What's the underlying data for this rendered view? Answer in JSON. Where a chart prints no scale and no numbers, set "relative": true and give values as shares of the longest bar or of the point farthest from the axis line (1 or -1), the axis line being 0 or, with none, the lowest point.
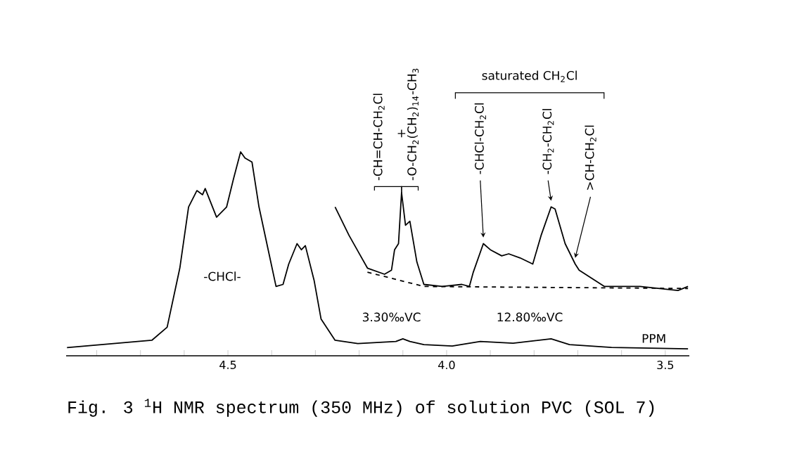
{
  "chart_data": {
    "type": "line",
    "title": "Fig. 3 $^{1}$H NMR spectrum (350 MHz) of solution PVC (SOL 7)",
    "relative": true,
    "xlim": [
      4.87,
      3.445
    ],
    "xticks": [
      {
        "value": 4.8,
        "label": null
      },
      {
        "value": 4.7,
        "label": null
      },
      {
        "value": 4.6,
        "label": null
      },
      {
        "value": 4.5,
        "label": "4.5"
      },
      {
        "value": 4.4,
        "label": null
      },
      {
        "value": 4.3,
        "label": null
      },
      {
        "value": 4.2,
        "label": null
      },
      {
        "value": 4.1,
        "label": null
      },
      {
        "value": 4.0,
        "label": "4.0"
      },
      {
        "value": 3.9,
        "label": null
      },
      {
        "value": 3.8,
        "label": null
      },
      {
        "value": 3.7,
        "label": null
      },
      {
        "value": 3.6,
        "label": null
      },
      {
        "value": 3.5,
        "label": "3.5"
      }
    ],
    "series": [
      {
        "color": "#000000",
        "x": [
          4.868,
          4.674,
          4.639,
          4.61,
          4.59,
          4.571,
          4.558,
          4.552,
          4.526,
          4.503,
          4.487,
          4.471,
          4.461,
          4.445,
          4.429,
          4.406,
          4.39,
          4.374,
          4.361,
          4.342,
          4.332,
          4.323,
          4.303,
          4.287,
          4.255,
          4.203,
          4.116,
          4.1,
          4.084,
          4.052,
          3.987,
          3.923,
          3.848,
          3.761,
          3.719,
          3.623,
          3.448
        ],
        "values": [
          0.04,
          0.076,
          0.14,
          0.43,
          0.73,
          0.81,
          0.79,
          0.82,
          0.68,
          0.73,
          0.87,
          1.0,
          0.97,
          0.95,
          0.73,
          0.5,
          0.34,
          0.35,
          0.45,
          0.55,
          0.52,
          0.54,
          0.37,
          0.18,
          0.076,
          0.06,
          0.07,
          0.083,
          0.07,
          0.055,
          0.048,
          0.07,
          0.062,
          0.083,
          0.055,
          0.041,
          0.034
        ]
      },
      {
        "color": "#000000",
        "x": [
          4.255,
          4.223,
          4.181,
          4.142,
          4.126,
          4.119,
          4.11,
          4.103,
          4.094,
          4.084,
          4.068,
          4.052,
          4.01,
          3.965,
          3.948,
          3.939,
          3.916,
          3.9,
          3.874,
          3.858,
          3.832,
          3.803,
          3.784,
          3.761,
          3.752,
          3.729,
          3.706,
          3.697,
          3.639,
          3.558,
          3.471,
          3.448
        ],
        "values": [
          0.73,
          0.59,
          0.43,
          0.4,
          0.42,
          0.52,
          0.55,
          0.8,
          0.64,
          0.66,
          0.46,
          0.35,
          0.34,
          0.35,
          0.34,
          0.41,
          0.55,
          0.52,
          0.49,
          0.5,
          0.48,
          0.45,
          0.59,
          0.73,
          0.72,
          0.55,
          0.45,
          0.42,
          0.34,
          0.34,
          0.32,
          0.34
        ]
      },
      {
        "color": "#000000",
        "line_style": "dashed",
        "x": [
          4.181,
          4.052,
          3.448
        ],
        "values": [
          0.41,
          0.34,
          0.33
        ]
      }
    ],
    "annotations": [
      "-CHCl-",
      {
        "text": "-CH=CH-CH$_{2}$Cl",
        "x": 4.103,
        "y": 0.8
      },
      "+",
      {
        "text": "-O-CH$_{2}$(CH$_{2}$)$_{14}$-CH$_{3}$",
        "x": 4.103,
        "y": 0.8
      },
      "saturated CH$_{2}$Cl",
      {
        "text": "-CHCl-CH$_{2}$Cl",
        "x": 3.916,
        "y": 0.55
      },
      {
        "text": "-CH$_{2}$-CH$_{2}$Cl",
        "x": 3.761,
        "y": 0.73
      },
      {
        "text": ">CH-CH$_{2}$Cl",
        "x": 3.706,
        "y": 0.45
      },
      "3.30‰VC",
      "12.80‰VC",
      "PPM"
    ]
  }
}
